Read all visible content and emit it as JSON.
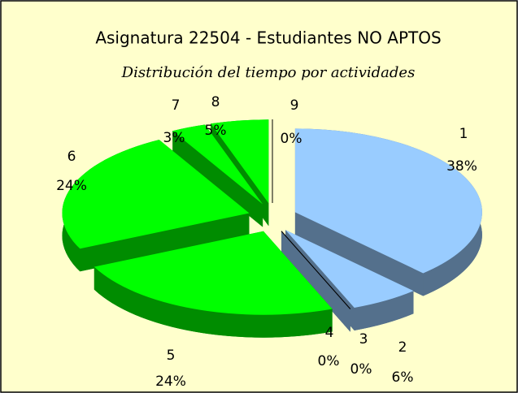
{
  "chart_data": {
    "type": "pie3d",
    "title": "Asignatura 22504 - Estudiantes NO APTOS",
    "subtitle": "Distribución del tiempo por actividades",
    "categories": [
      "1",
      "2",
      "3",
      "4",
      "5",
      "6",
      "7",
      "8",
      "9"
    ],
    "values": [
      38,
      6,
      0,
      0,
      24,
      24,
      3,
      5,
      0
    ],
    "value_labels": [
      "38%",
      "6%",
      "0%",
      "0%",
      "24%",
      "24%",
      "3%",
      "5%",
      "0%"
    ],
    "colors": [
      "#99ccff",
      "#99ccff",
      "#99ccff",
      "#99ccff",
      "#00ff00",
      "#00ff00",
      "#00ff00",
      "#00ff00",
      "#00ff00"
    ]
  }
}
